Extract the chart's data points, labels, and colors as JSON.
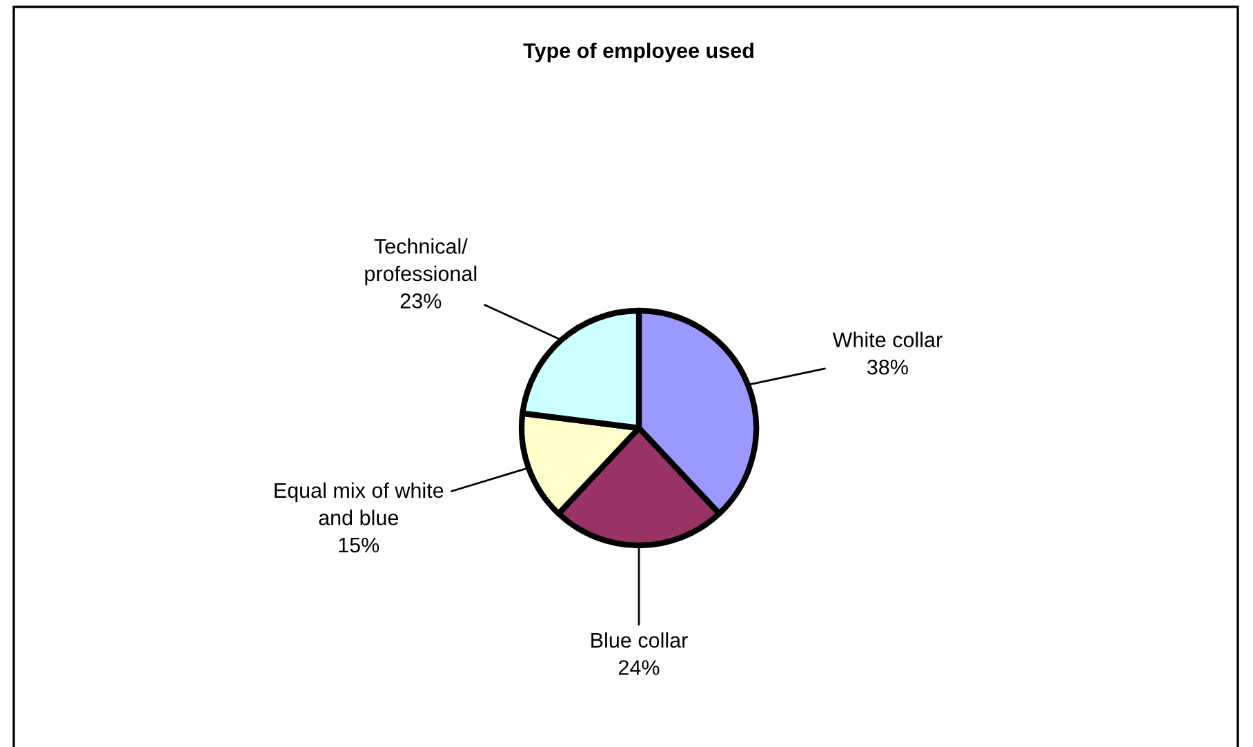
{
  "chart_data": {
    "type": "pie",
    "title": "Type of employee used",
    "categories": [
      "White collar",
      "Blue collar",
      "Equal mix of white\nand blue",
      "Technical/\nprofessional"
    ],
    "values": [
      38,
      24,
      15,
      23
    ],
    "value_labels": [
      "38%",
      "24%",
      "15%",
      "23%"
    ],
    "colors": [
      "#9999ff",
      "#993366",
      "#ffffcc",
      "#ccffff"
    ],
    "legend": false
  }
}
